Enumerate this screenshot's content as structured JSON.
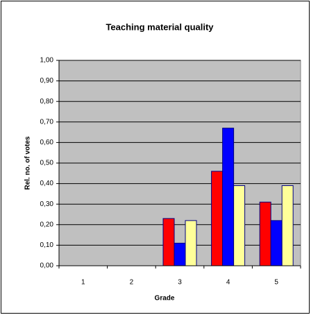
{
  "chart_data": {
    "type": "bar",
    "title": "Teaching material quality",
    "xlabel": "Grade",
    "ylabel": "Rel. no. of votes",
    "categories": [
      "1",
      "2",
      "3",
      "4",
      "5"
    ],
    "series": [
      {
        "color": "#ff0000",
        "values": [
          0,
          0,
          0.23,
          0.46,
          0.31
        ]
      },
      {
        "color": "#0000ff",
        "values": [
          0,
          0,
          0.11,
          0.67,
          0.22
        ]
      },
      {
        "color": "#ffff99",
        "values": [
          0,
          0,
          0.22,
          0.39,
          0.39
        ]
      }
    ],
    "ylim": [
      0,
      1
    ],
    "yticks": [
      {
        "value": 0,
        "label": "0,00"
      },
      {
        "value": 0.1,
        "label": "0,10"
      },
      {
        "value": 0.2,
        "label": "0,20"
      },
      {
        "value": 0.3,
        "label": "0,30"
      },
      {
        "value": 0.4,
        "label": "0,40"
      },
      {
        "value": 0.5,
        "label": "0,50"
      },
      {
        "value": 0.6,
        "label": "0,60"
      },
      {
        "value": 0.7,
        "label": "0,70"
      },
      {
        "value": 0.8,
        "label": "0,80"
      },
      {
        "value": 0.9,
        "label": "0,90"
      },
      {
        "value": 1,
        "label": "1,00"
      }
    ],
    "grid": true,
    "plot_background": "#c0c0c0"
  }
}
